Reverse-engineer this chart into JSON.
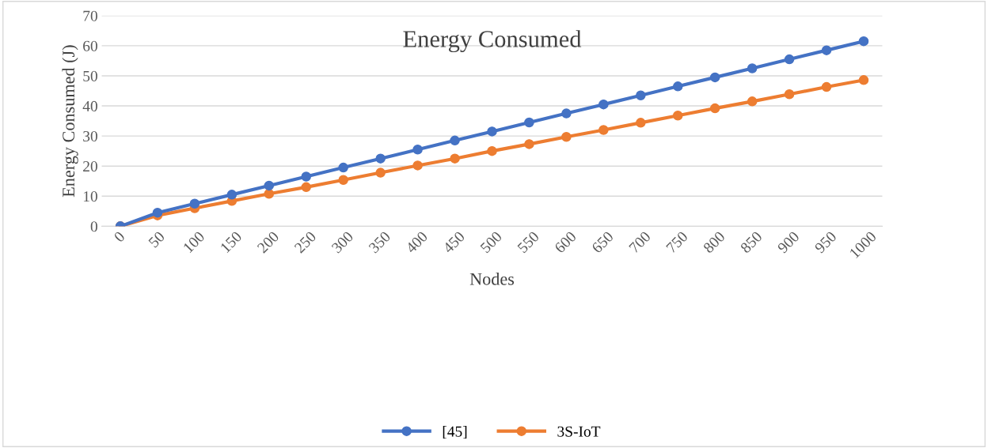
{
  "chart_data": {
    "type": "line",
    "title": "Energy Consumed",
    "xlabel": "Nodes",
    "ylabel": "Energy Consumed (J)",
    "categories": [
      "0",
      "50",
      "100",
      "150",
      "200",
      "250",
      "300",
      "350",
      "400",
      "450",
      "500",
      "550",
      "600",
      "650",
      "700",
      "750",
      "800",
      "850",
      "900",
      "950",
      "1000"
    ],
    "series": [
      {
        "name": "[45]",
        "color": "#4472c4",
        "values": [
          0,
          4.5,
          7.5,
          10.5,
          13.5,
          16.5,
          19.5,
          22.5,
          25.5,
          28.5,
          31.5,
          34.5,
          37.5,
          40.5,
          43.5,
          46.5,
          49.5,
          52.5,
          55.5,
          58.5,
          61.5
        ]
      },
      {
        "name": "3S-IoT",
        "color": "#ed7d31",
        "values": [
          0,
          3.6,
          6,
          8.4,
          10.8,
          13,
          15.4,
          17.8,
          20.2,
          22.5,
          25,
          27.3,
          29.7,
          32,
          34.4,
          36.8,
          39.2,
          41.5,
          43.9,
          46.3,
          48.6
        ]
      }
    ],
    "ylim": [
      0,
      70
    ],
    "yticks": [
      0,
      10,
      20,
      30,
      40,
      50,
      60,
      70
    ],
    "grid": "y",
    "legend": "bottom",
    "marker": "circle",
    "line_style": "solid"
  }
}
